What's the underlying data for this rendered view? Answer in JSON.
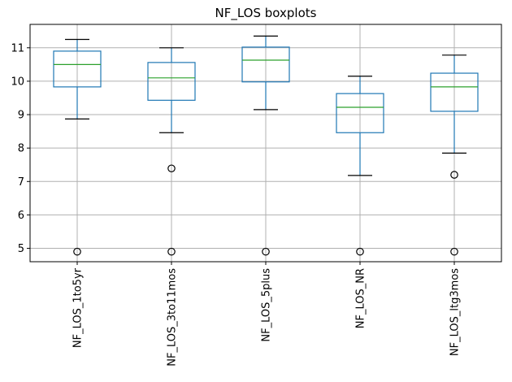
{
  "chart_data": {
    "type": "boxplot",
    "title": "NF_LOS boxplots",
    "xlabel": "",
    "ylabel": "",
    "ylim": [
      4.6,
      11.7
    ],
    "yticks": [
      5,
      6,
      7,
      8,
      9,
      10,
      11
    ],
    "grid": true,
    "categories": [
      "NF_LOS_1to5yr",
      "NF_LOS_3to11mos",
      "NF_LOS_5plus",
      "NF_LOS_NR",
      "NF_LOS_ltg3mos"
    ],
    "boxes": [
      {
        "whisker_low": 8.87,
        "q1": 9.83,
        "median": 10.5,
        "q3": 10.9,
        "whisker_high": 11.25,
        "outliers": [
          4.9
        ]
      },
      {
        "whisker_low": 8.46,
        "q1": 9.43,
        "median": 10.1,
        "q3": 10.56,
        "whisker_high": 11.0,
        "outliers": [
          7.39,
          4.9
        ]
      },
      {
        "whisker_low": 9.15,
        "q1": 9.98,
        "median": 10.63,
        "q3": 11.02,
        "whisker_high": 11.35,
        "outliers": [
          4.9
        ]
      },
      {
        "whisker_low": 7.18,
        "q1": 8.46,
        "median": 9.22,
        "q3": 9.63,
        "whisker_high": 10.15,
        "outliers": [
          4.9
        ]
      },
      {
        "whisker_low": 7.85,
        "q1": 9.1,
        "median": 9.83,
        "q3": 10.24,
        "whisker_high": 10.78,
        "outliers": [
          7.2,
          4.9
        ]
      }
    ],
    "colors": {
      "box": "#1f77b4",
      "median": "#2ca02c",
      "whisker": "#000000",
      "grid": "#b0b0b0"
    }
  }
}
